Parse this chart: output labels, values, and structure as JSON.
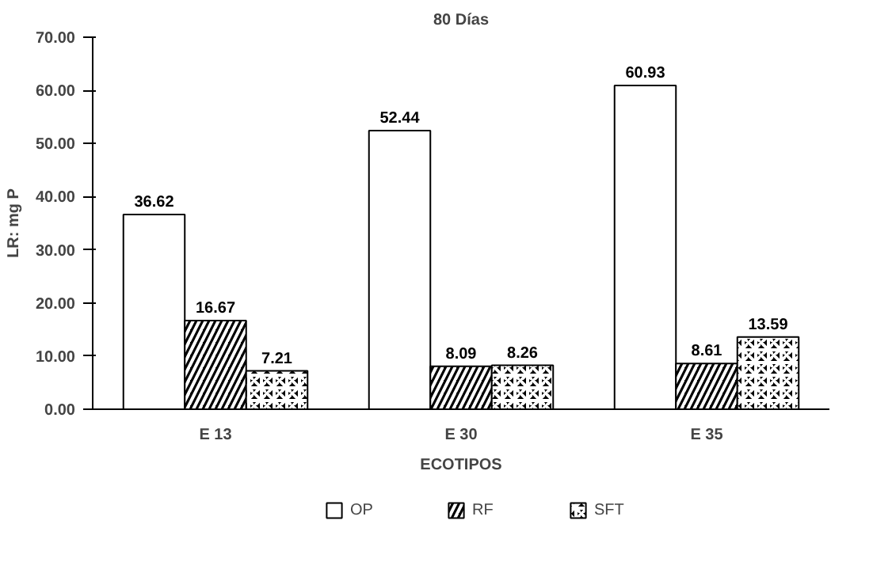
{
  "chart_data": {
    "type": "bar",
    "title": "80 Días",
    "xlabel": "ECOTIPOS",
    "ylabel": "LR: mg P",
    "categories": [
      "E 13",
      "E 30",
      "E 35"
    ],
    "series": [
      {
        "name": "OP",
        "color": "#ffffff",
        "values": [
          36.62,
          52.44,
          60.93
        ]
      },
      {
        "name": "RF",
        "color": "#000000",
        "values": [
          16.67,
          8.09,
          8.61
        ]
      },
      {
        "name": "SFT",
        "color": "#000000",
        "values": [
          7.21,
          8.26,
          13.59
        ]
      }
    ],
    "ylim": [
      0,
      70
    ],
    "yticks": [
      {
        "value": 0,
        "label": "0.00"
      },
      {
        "value": 10,
        "label": "10.00"
      },
      {
        "value": 20,
        "label": "20.00"
      },
      {
        "value": 30,
        "label": "30.00"
      },
      {
        "value": 40,
        "label": "40.00"
      },
      {
        "value": 50,
        "label": "50.00"
      },
      {
        "value": 60,
        "label": "60.00"
      },
      {
        "value": 70,
        "label": "70.00"
      }
    ],
    "data_labels": true,
    "legend": "bottom",
    "grid": false
  }
}
